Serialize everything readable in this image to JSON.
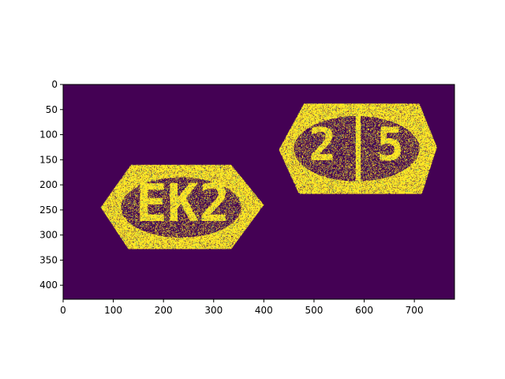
{
  "chart_data": {
    "type": "heatmap",
    "title": "",
    "xlabel": "",
    "ylabel": "",
    "image_size": [
      780,
      428
    ],
    "xlim": [
      0,
      780
    ],
    "ylim": [
      428,
      0
    ],
    "x_ticks": [
      0,
      100,
      200,
      300,
      400,
      500,
      600,
      700
    ],
    "y_ticks": [
      0,
      50,
      100,
      150,
      200,
      250,
      300,
      350,
      400
    ],
    "colormap": "viridis",
    "colors": {
      "background": "#440154",
      "foreground": "#fde725",
      "mid": "#21918c"
    },
    "grid": false,
    "legend": "none",
    "description_values": {
      "left_label": "EK2",
      "right_left_digit": "2",
      "right_right_digit": "5"
    }
  }
}
